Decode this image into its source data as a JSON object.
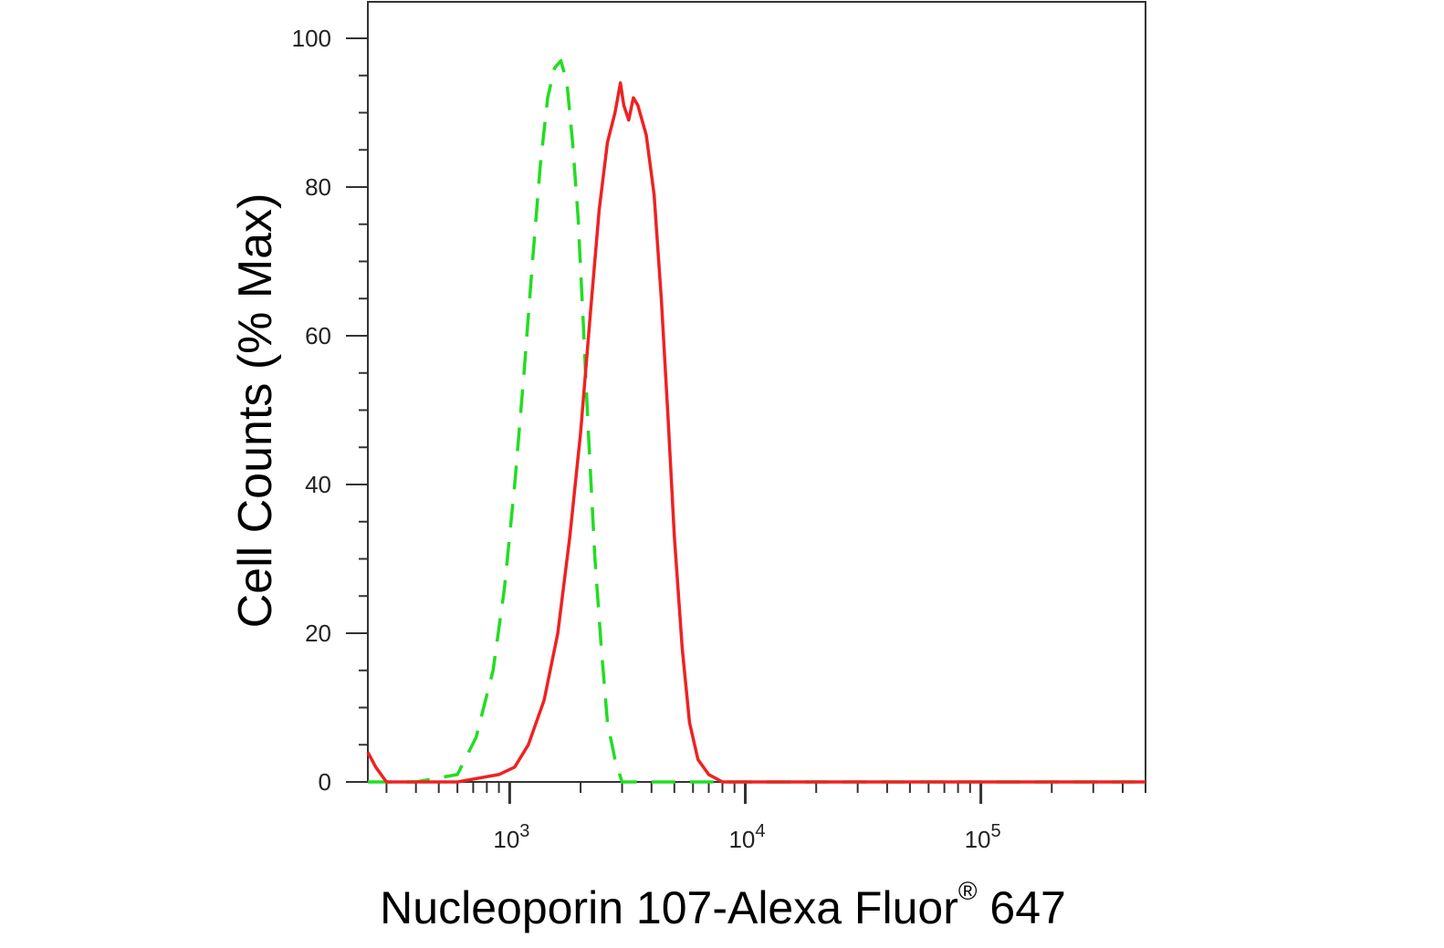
{
  "chart_data": {
    "type": "line",
    "xlabel": {
      "main": "Nucleoporin 107-Alexa Fluor",
      "sup": "®",
      "tail": " 647"
    },
    "ylabel": "Cell Counts (% Max)",
    "xscale": "log",
    "xlim": [
      250,
      500000
    ],
    "ylim": [
      0,
      105
    ],
    "yticks": [
      0,
      20,
      40,
      60,
      80,
      100
    ],
    "xticks": [
      {
        "base": "10",
        "exp": "3",
        "value": 1000
      },
      {
        "base": "10",
        "exp": "4",
        "value": 10000
      },
      {
        "base": "10",
        "exp": "5",
        "value": 100000
      }
    ],
    "series": [
      {
        "color": "#22dd22",
        "style": "dashed",
        "points": [
          [
            250,
            0
          ],
          [
            400,
            0
          ],
          [
            600,
            1
          ],
          [
            720,
            6
          ],
          [
            850,
            15
          ],
          [
            950,
            26
          ],
          [
            1050,
            40
          ],
          [
            1150,
            55
          ],
          [
            1250,
            70
          ],
          [
            1350,
            83
          ],
          [
            1450,
            92
          ],
          [
            1550,
            96
          ],
          [
            1650,
            97
          ],
          [
            1750,
            94
          ],
          [
            1850,
            86
          ],
          [
            1950,
            76
          ],
          [
            2050,
            62
          ],
          [
            2150,
            48
          ],
          [
            2300,
            30
          ],
          [
            2450,
            18
          ],
          [
            2600,
            8
          ],
          [
            2800,
            3
          ],
          [
            3000,
            0
          ],
          [
            3500,
            0
          ],
          [
            500000,
            0
          ]
        ]
      },
      {
        "color": "#ee2222",
        "style": "solid",
        "points": [
          [
            250,
            4
          ],
          [
            270,
            2
          ],
          [
            300,
            0
          ],
          [
            600,
            0
          ],
          [
            900,
            1
          ],
          [
            1050,
            2
          ],
          [
            1200,
            5
          ],
          [
            1400,
            11
          ],
          [
            1600,
            20
          ],
          [
            1800,
            33
          ],
          [
            2000,
            47
          ],
          [
            2200,
            63
          ],
          [
            2400,
            77
          ],
          [
            2600,
            86
          ],
          [
            2800,
            90
          ],
          [
            2950,
            94
          ],
          [
            3050,
            91
          ],
          [
            3200,
            89
          ],
          [
            3350,
            92
          ],
          [
            3500,
            91
          ],
          [
            3800,
            87
          ],
          [
            4100,
            79
          ],
          [
            4400,
            65
          ],
          [
            4700,
            49
          ],
          [
            5000,
            33
          ],
          [
            5400,
            18
          ],
          [
            5800,
            8
          ],
          [
            6300,
            3
          ],
          [
            7000,
            1
          ],
          [
            8000,
            0
          ],
          [
            500000,
            0
          ]
        ]
      }
    ]
  }
}
